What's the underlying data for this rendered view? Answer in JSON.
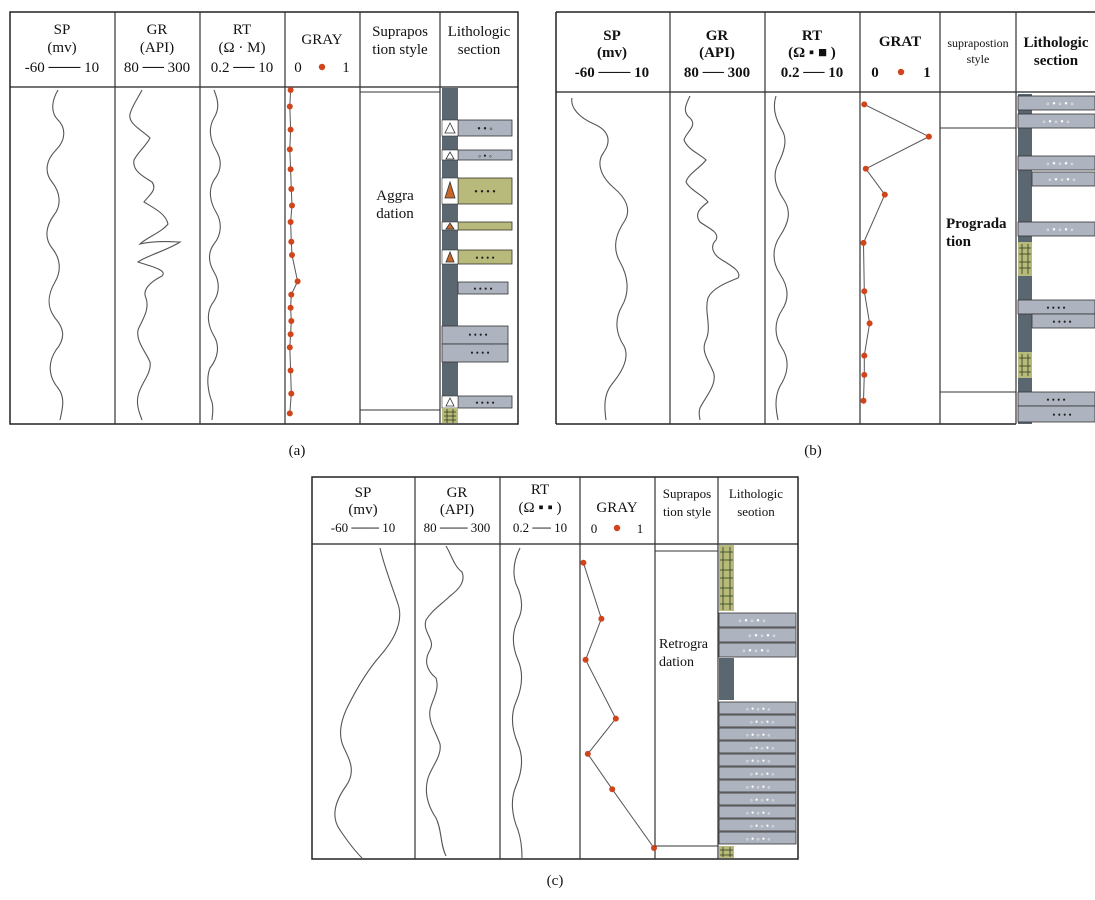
{
  "colors": {
    "curve": "#555555",
    "frame": "#222222",
    "grid": "#333333",
    "dot": "#d0451b",
    "sand": "#aeb4bf",
    "mud": "#5a6670",
    "coal": "#b7ba7a",
    "coal_dark": "#2e3a1c",
    "triangle": "#c8662a"
  },
  "panels": [
    {
      "caption": "(a)",
      "bold_headers": false,
      "headers": {
        "sp": {
          "name": "SP",
          "unit": "(mv)",
          "scale": "-60 ─── 10"
        },
        "gr": {
          "name": "GR",
          "unit": "(API)",
          "scale": "80 ── 300"
        },
        "rt": {
          "name": "RT",
          "unit": "(Ω · M)",
          "scale": "0.2 ── 10"
        },
        "gray": {
          "name": "GRAY",
          "scale_min": "0",
          "scale_max": "1"
        },
        "style": {
          "line1": "Suprapos",
          "line2": "tion style"
        },
        "litho": {
          "line1": "Lithologic",
          "line2": "section"
        }
      },
      "style_label": {
        "line1": "Aggra",
        "line2": "dation"
      },
      "gray_points": [
        [
          0.05,
          0.0
        ],
        [
          0.04,
          0.05
        ],
        [
          0.05,
          0.12
        ],
        [
          0.04,
          0.18
        ],
        [
          0.05,
          0.24
        ],
        [
          0.06,
          0.3
        ],
        [
          0.07,
          0.35
        ],
        [
          0.05,
          0.4
        ],
        [
          0.06,
          0.46
        ],
        [
          0.07,
          0.5
        ],
        [
          0.15,
          0.58
        ],
        [
          0.06,
          0.62
        ],
        [
          0.05,
          0.66
        ],
        [
          0.06,
          0.7
        ],
        [
          0.05,
          0.74
        ],
        [
          0.04,
          0.78
        ],
        [
          0.05,
          0.85
        ],
        [
          0.06,
          0.92
        ],
        [
          0.04,
          0.98
        ]
      ]
    },
    {
      "caption": "(b)",
      "bold_headers": true,
      "headers": {
        "sp": {
          "name": "SP",
          "unit": "(mv)",
          "scale": "-60 ─── 10"
        },
        "gr": {
          "name": "GR",
          "unit": "(API)",
          "scale": "80 ── 300"
        },
        "rt": {
          "name": "RT",
          "unit": "(Ω ▪ ■ )",
          "scale": "0.2 ── 10"
        },
        "gray": {
          "name": "GRAT",
          "scale_min": "0",
          "scale_max": "1"
        },
        "style": {
          "line1": "suprapostion",
          "line2": "style"
        },
        "litho": {
          "line1": "Lithologic",
          "line2": "section"
        }
      },
      "style_label": {
        "line1": "Prograda",
        "line2": "tion"
      },
      "gray_points": [
        [
          0.03,
          0.02
        ],
        [
          0.88,
          0.12
        ],
        [
          0.05,
          0.22
        ],
        [
          0.3,
          0.3
        ],
        [
          0.02,
          0.45
        ],
        [
          0.03,
          0.6
        ],
        [
          0.1,
          0.7
        ],
        [
          0.03,
          0.8
        ],
        [
          0.03,
          0.86
        ],
        [
          0.02,
          0.94
        ]
      ]
    },
    {
      "caption": "(c)",
      "bold_headers": false,
      "headers": {
        "sp": {
          "name": "SP",
          "unit": "(mv)",
          "scale": "-60 ─── 10"
        },
        "gr": {
          "name": "GR",
          "unit": "(API)",
          "scale": "80 ─── 300"
        },
        "rt": {
          "name": "RT",
          "unit": "(Ω ▪ ▪ )",
          "scale": "0.2 ── 10"
        },
        "gray": {
          "name": "GRAY",
          "scale_min": "0",
          "scale_max": "1"
        },
        "style": {
          "line1": "Suprapos",
          "line2": "tion style"
        },
        "litho": {
          "line1": "Lithologic",
          "line2": "seotion"
        }
      },
      "style_label": {
        "line1": "Retrogra",
        "line2": "dation"
      },
      "gray_points": [
        [
          0.02,
          0.03
        ],
        [
          0.27,
          0.22
        ],
        [
          0.05,
          0.36
        ],
        [
          0.47,
          0.56
        ],
        [
          0.08,
          0.68
        ],
        [
          0.42,
          0.8
        ],
        [
          1.0,
          1.0
        ]
      ]
    }
  ]
}
